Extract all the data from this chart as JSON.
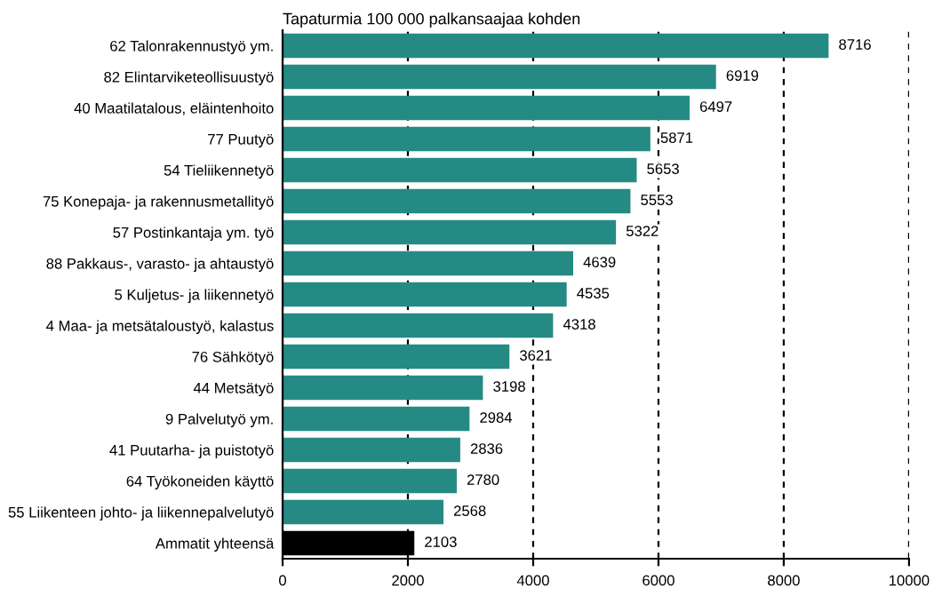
{
  "chart_data": {
    "type": "bar",
    "orientation": "horizontal",
    "title": "Tapaturmia 100 000 palkansaajaa kohden",
    "categories": [
      "62 Talonrakennustyö ym.",
      "82 Elintarviketeollisuustyö",
      "40 Maatilatalous, eläintenhoito",
      "77 Puutyö",
      "54 Tieliikennetyö",
      "75 Konepaja- ja rakennusmetallityö",
      "57 Postinkantaja ym. työ",
      "88 Pakkaus-, varasto- ja ahtaustyö",
      "5 Kuljetus- ja liikennetyö",
      "4 Maa- ja metsätaloustyö, kalastus",
      "76 Sähkötyö",
      "44 Metsätyö",
      "9 Palvelutyö ym.",
      "41 Puutarha- ja puistotyö",
      "64 Työkoneiden käyttö",
      "55 Liikenteen johto- ja liikennepalvelutyö",
      "Ammatit yhteensä"
    ],
    "values": [
      8716,
      6919,
      6497,
      5871,
      5653,
      5553,
      5322,
      4639,
      4535,
      4318,
      3621,
      3198,
      2984,
      2836,
      2780,
      2568,
      2103
    ],
    "colors": [
      "#268a84",
      "#268a84",
      "#268a84",
      "#268a84",
      "#268a84",
      "#268a84",
      "#268a84",
      "#268a84",
      "#268a84",
      "#268a84",
      "#268a84",
      "#268a84",
      "#268a84",
      "#268a84",
      "#268a84",
      "#268a84",
      "#000000"
    ],
    "data_labels": true,
    "xlim": [
      0,
      10000
    ],
    "xticks": [
      0,
      2000,
      4000,
      6000,
      8000,
      10000
    ],
    "grid": "x"
  }
}
